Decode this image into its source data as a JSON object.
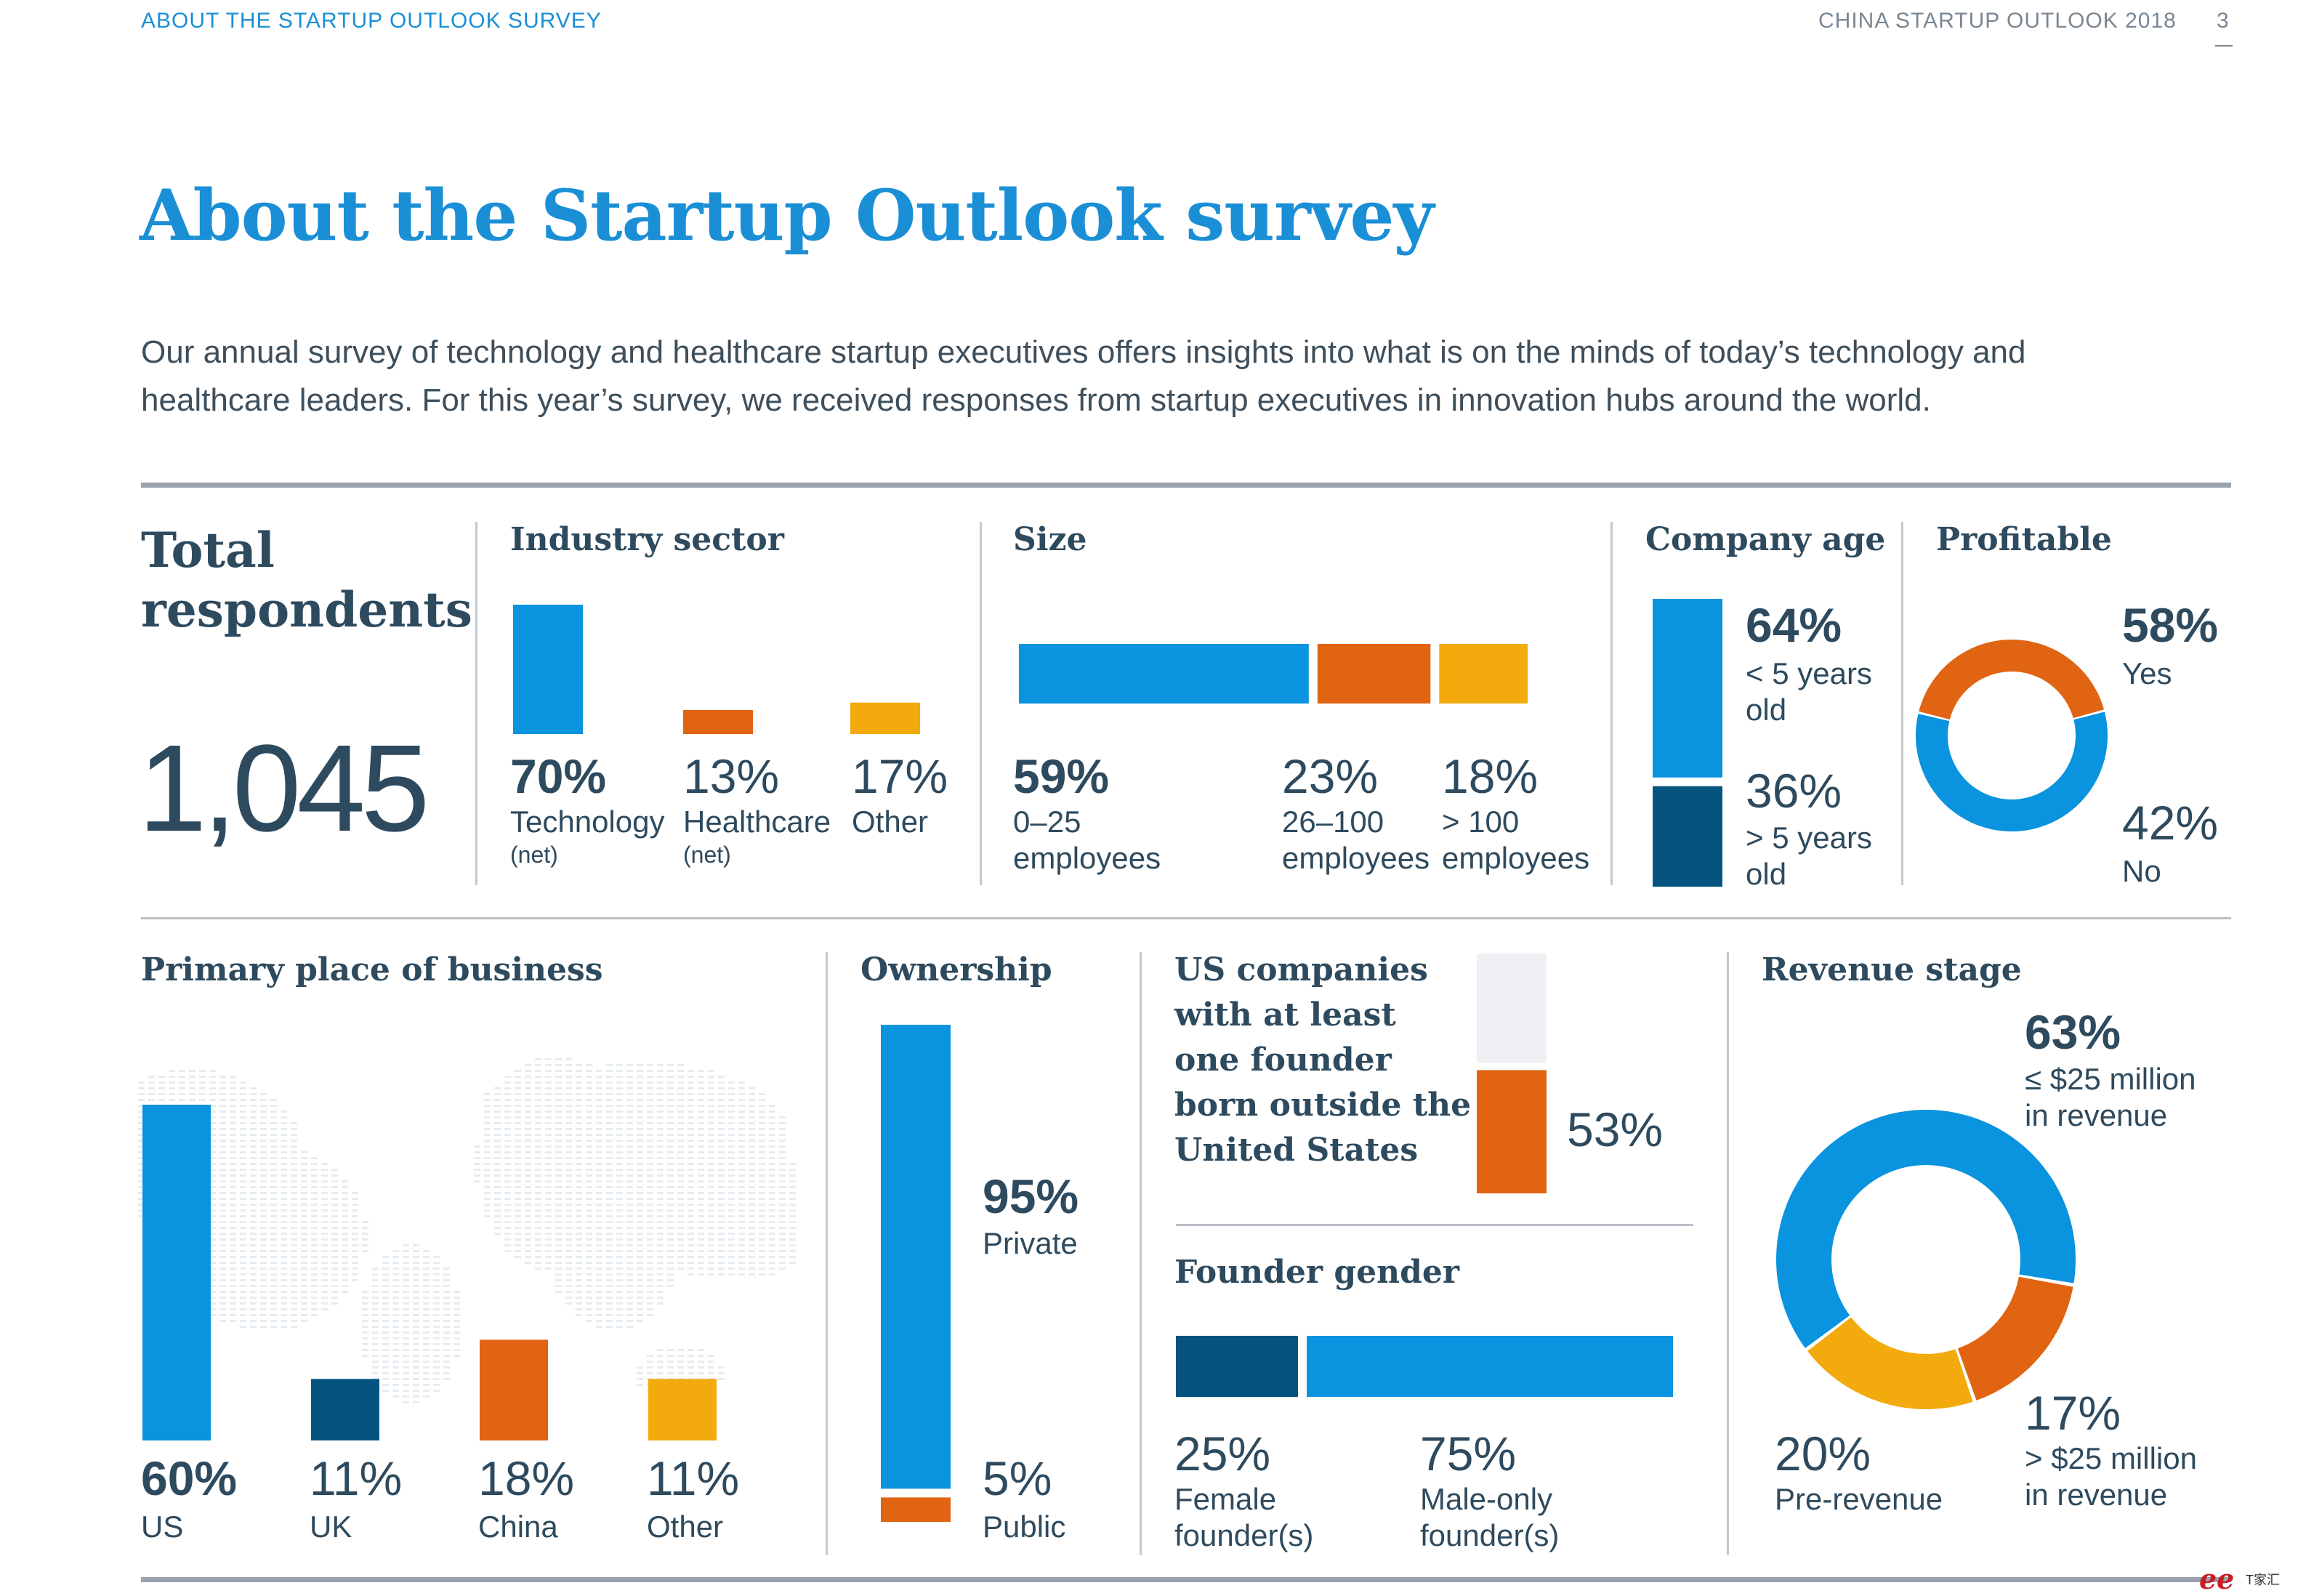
{
  "header": {
    "left": "ABOUT THE STARTUP OUTLOOK SURVEY",
    "right": "CHINA STARTUP OUTLOOK 2018",
    "page_number": "3"
  },
  "title": "About the Startup Outlook survey",
  "intro": {
    "line1": "Our annual survey of technology and healthcare startup executives offers insights into what is on the minds of today’s technology and",
    "line2": "healthcare leaders. For this year’s survey, we received responses from startup executives in innovation hubs around the world."
  },
  "total": {
    "label_line1": "Total",
    "label_line2": "respondents",
    "value": "1,045"
  },
  "industry": {
    "title": "Industry sector",
    "items": [
      {
        "pct": "70%",
        "label": "Technology",
        "note": "(net)"
      },
      {
        "pct": "13%",
        "label": "Healthcare",
        "note": "(net)"
      },
      {
        "pct": "17%",
        "label": "Other",
        "note": ""
      }
    ]
  },
  "size": {
    "title": "Size",
    "items": [
      {
        "pct": "59%",
        "line1": "0–25",
        "line2": "employees"
      },
      {
        "pct": "23%",
        "line1": "26–100",
        "line2": "employees"
      },
      {
        "pct": "18%",
        "line1": "> 100",
        "line2": "employees"
      }
    ]
  },
  "company_age": {
    "title": "Company age",
    "items": [
      {
        "pct": "64%",
        "line1": "< 5 years",
        "line2": "old"
      },
      {
        "pct": "36%",
        "line1": "> 5 years",
        "line2": "old"
      }
    ]
  },
  "profitable": {
    "title": "Profitable",
    "items": [
      {
        "pct": "58%",
        "label": "Yes"
      },
      {
        "pct": "42%",
        "label": "No"
      }
    ]
  },
  "place": {
    "title": "Primary place of business",
    "items": [
      {
        "pct": "60%",
        "label": "US"
      },
      {
        "pct": "11%",
        "label": "UK"
      },
      {
        "pct": "18%",
        "label": "China"
      },
      {
        "pct": "11%",
        "label": "Other"
      }
    ]
  },
  "ownership": {
    "title": "Ownership",
    "items": [
      {
        "pct": "95%",
        "label": "Private"
      },
      {
        "pct": "5%",
        "label": "Public"
      }
    ]
  },
  "foreign_founder": {
    "title_lines": [
      "US companies",
      "with at least",
      "one founder",
      "born outside the",
      "United States"
    ],
    "pct": "53%"
  },
  "gender": {
    "title": "Founder gender",
    "items": [
      {
        "pct": "25%",
        "line1": "Female",
        "line2": "founder(s)"
      },
      {
        "pct": "75%",
        "line1": "Male-only",
        "line2": "founder(s)"
      }
    ]
  },
  "revenue": {
    "title": "Revenue stage",
    "items": [
      {
        "pct": "63%",
        "line1": "≤ $25 million",
        "line2": "in revenue"
      },
      {
        "pct": "17%",
        "line1": "> $25 million",
        "line2": "in revenue"
      },
      {
        "pct": "20%",
        "line1": "Pre-revenue",
        "line2": ""
      }
    ]
  },
  "watermark": {
    "text": "T家汇"
  },
  "colors": {
    "blue": "#0a93de",
    "orange": "#e06412",
    "yellow": "#f3aa0c",
    "navy": "#05547f",
    "light": "#eff0f4",
    "text": "#2e4a5e",
    "accent": "#1a8fd6"
  },
  "chart_data": [
    {
      "type": "bar",
      "categories": [
        "Technology (net)",
        "Healthcare (net)",
        "Other"
      ],
      "values": [
        70,
        13,
        17
      ]
    },
    {
      "type": "bar",
      "categories": [
        "0–25 employees",
        "26–100 employees",
        "> 100 employees"
      ],
      "values": [
        59,
        23,
        18
      ]
    },
    {
      "type": "bar",
      "categories": [
        "< 5 years old",
        "> 5 years old"
      ],
      "values": [
        64,
        36
      ]
    },
    {
      "type": "pie",
      "categories": [
        "Yes",
        "No"
      ],
      "values": [
        58,
        42
      ]
    },
    {
      "type": "bar",
      "categories": [
        "US",
        "UK",
        "China",
        "Other"
      ],
      "values": [
        60,
        11,
        18,
        11
      ]
    },
    {
      "type": "bar",
      "categories": [
        "Private",
        "Public"
      ],
      "values": [
        95,
        5
      ]
    },
    {
      "type": "bar",
      "categories": [
        "US companies with at least one founder born outside the United States"
      ],
      "values": [
        53
      ]
    },
    {
      "type": "bar",
      "categories": [
        "Female founder(s)",
        "Male-only founder(s)"
      ],
      "values": [
        25,
        75
      ]
    },
    {
      "type": "pie",
      "categories": [
        "≤ $25 million in revenue",
        "> $25 million in revenue",
        "Pre-revenue"
      ],
      "values": [
        63,
        17,
        20
      ]
    }
  ]
}
